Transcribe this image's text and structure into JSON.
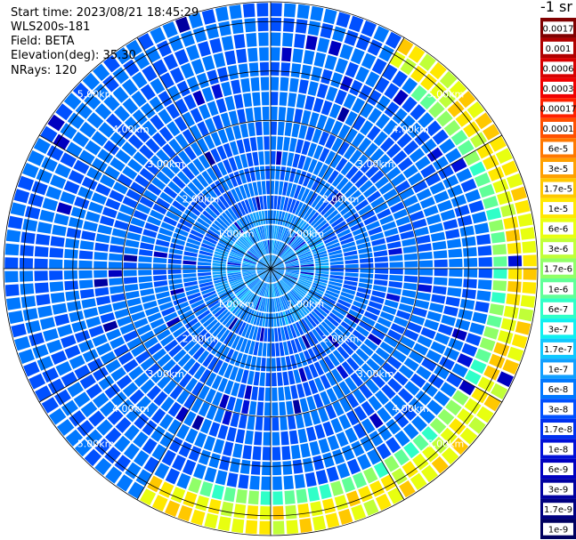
{
  "header": {
    "start_time": "Start time: 2023/08/21 18:45:29",
    "instrument": "WLS200s-181",
    "field": "Field: BETA",
    "elevation": "Elevation(deg): 35.30",
    "nrays": "NRays: 120"
  },
  "colorbar": {
    "title": "-1 sr",
    "labels": [
      "0.0017",
      "0.001",
      "0.0006",
      "0.0003",
      "0.00017",
      "0.0001",
      "6e-5",
      "3e-5",
      "1.7e-5",
      "1e-5",
      "6e-6",
      "3e-6",
      "1.7e-6",
      "1e-6",
      "6e-7",
      "3e-7",
      "1.7e-7",
      "1e-7",
      "6e-8",
      "3e-8",
      "1.7e-8",
      "1e-8",
      "6e-9",
      "3e-9",
      "1.7e-9",
      "1e-9"
    ],
    "colors": [
      "#800000",
      "#b00000",
      "#d80000",
      "#f00000",
      "#ff2000",
      "#ff5000",
      "#ff7800",
      "#ffa000",
      "#ffc800",
      "#ffe800",
      "#e8ff10",
      "#c0ff38",
      "#90ff68",
      "#60ff98",
      "#30ffc8",
      "#10f0f0",
      "#10c8ff",
      "#10a0ff",
      "#0078ff",
      "#0050ff",
      "#0030f0",
      "#0010d8",
      "#0000c0",
      "#0000a0",
      "#000080",
      "#000060"
    ]
  },
  "chart_data": {
    "type": "heatmap",
    "projection": "polar PPI scan",
    "field": "BETA",
    "units": "-1 sr",
    "scale": "log",
    "nrays": 120,
    "elevation_deg": 35.3,
    "range_rings_km": [
      1.0,
      2.0,
      3.0,
      4.0,
      5.0
    ],
    "ring_labels": [
      "1.00km",
      "2.00km",
      "3.00km",
      "4.00km",
      "5.00km"
    ],
    "max_range_km": 5.4,
    "background_level": "1e-7 to 3e-7",
    "high_return_zone": {
      "range_km": [
        4.8,
        5.4
      ],
      "azimuth_deg_clockwise_from_north": [
        30,
        210
      ],
      "peak_level": "1e-5 to 6e-5"
    }
  }
}
